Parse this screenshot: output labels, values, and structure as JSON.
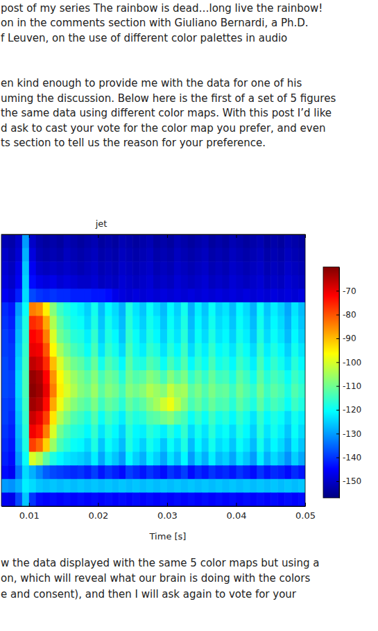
{
  "page": {
    "text_top": [
      "post of my series The rainbow is dead…long live the rainbow!",
      "on in the comments section with Giuliano Bernardi, a Ph.D.",
      "f Leuven, on the use of different color palettes in audio",
      "en kind enough to provide me with the data for one of his",
      "uming the discussion. Below here is the first of a set of 5 figures",
      "the same data using different color maps. With this post I’d like",
      "d ask to cast your vote for the color map you prefer, and even",
      "ts section to tell us the reason for your preference."
    ],
    "text_bottom": [
      "w the data displayed with the same 5 color maps but using a",
      "on, which will reveal what our brain is doing with the colors",
      "e and consent), and then I will ask again to vote for your"
    ]
  },
  "chart_data": {
    "type": "heatmap",
    "title": "jet",
    "x_label": "Time [s]",
    "xlim": [
      0.006,
      0.05
    ],
    "xticks": [
      0.01,
      0.02,
      0.03,
      0.04,
      0.05
    ],
    "ylim": [
      0,
      20
    ],
    "tick_labels": "x",
    "x": [
      0.006,
      0.007,
      0.008,
      0.009,
      0.01,
      0.011,
      0.012,
      0.013,
      0.014,
      0.015,
      0.016,
      0.017,
      0.018,
      0.019,
      0.02,
      0.021,
      0.022,
      0.023,
      0.024,
      0.025,
      0.026,
      0.027,
      0.028,
      0.029,
      0.03,
      0.031,
      0.032,
      0.033,
      0.034,
      0.035,
      0.036,
      0.037,
      0.038,
      0.039,
      0.04,
      0.041,
      0.042,
      0.043,
      0.044,
      0.045,
      0.046,
      0.047,
      0.048,
      0.049
    ],
    "y": [
      19,
      18,
      17,
      16,
      15,
      14,
      13,
      12,
      11,
      10,
      9,
      8,
      7,
      6,
      5,
      4,
      3,
      2,
      1,
      0
    ],
    "cells": [
      [
        -152,
        -153,
        -150,
        -130,
        -150,
        -153,
        -154,
        -153,
        -154,
        -152,
        -153,
        -154,
        -153,
        -152,
        -154,
        -153,
        -154,
        -152,
        -153,
        -154,
        -153,
        -152,
        -154,
        -153,
        -154,
        -152,
        -153,
        -154,
        -153,
        -152,
        -154,
        -153,
        -154,
        -152,
        -153,
        -154,
        -153,
        -152,
        -154,
        -153,
        -154,
        -152,
        -153,
        -154
      ],
      [
        -150,
        -152,
        -149,
        -128,
        -148,
        -152,
        -153,
        -152,
        -153,
        -151,
        -152,
        -153,
        -152,
        -151,
        -153,
        -152,
        -153,
        -151,
        -152,
        -153,
        -152,
        -151,
        -153,
        -152,
        -153,
        -151,
        -152,
        -153,
        -152,
        -151,
        -153,
        -152,
        -153,
        -151,
        -152,
        -153,
        -152,
        -151,
        -153,
        -152,
        -153,
        -151,
        -152,
        -153
      ],
      [
        -149,
        -151,
        -147,
        -126,
        -146,
        -150,
        -151,
        -150,
        -151,
        -150,
        -151,
        -152,
        -151,
        -150,
        -152,
        -151,
        -152,
        -150,
        -151,
        -152,
        -151,
        -150,
        -152,
        -151,
        -152,
        -150,
        -151,
        -152,
        -151,
        -150,
        -152,
        -151,
        -152,
        -150,
        -151,
        -152,
        -151,
        -150,
        -152,
        -151,
        -152,
        -150,
        -151,
        -152
      ],
      [
        -148,
        -150,
        -146,
        -125,
        -144,
        -147,
        -148,
        -147,
        -149,
        -148,
        -149,
        -150,
        -150,
        -149,
        -151,
        -150,
        -151,
        -149,
        -150,
        -151,
        -150,
        -149,
        -151,
        -150,
        -151,
        -149,
        -150,
        -151,
        -150,
        -149,
        -151,
        -150,
        -151,
        -149,
        -150,
        -151,
        -150,
        -149,
        -151,
        -150,
        -151,
        -149,
        -150,
        -151
      ],
      [
        -146,
        -148,
        -142,
        -124,
        -138,
        -140,
        -141,
        -140,
        -141,
        -141,
        -142,
        -142,
        -142,
        -143,
        -143,
        -144,
        -147,
        -148,
        -149,
        -148,
        -149,
        -148,
        -149,
        -148,
        -149,
        -148,
        -149,
        -148,
        -149,
        -148,
        -149,
        -148,
        -149,
        -148,
        -149,
        -148,
        -149,
        -148,
        -149,
        -148,
        -149,
        -148,
        -149,
        -148
      ],
      [
        -141,
        -143,
        -130,
        -120,
        -84,
        -86,
        -95,
        -108,
        -115,
        -118,
        -120,
        -122,
        -125,
        -119,
        -127,
        -121,
        -124,
        -128,
        -118,
        -123,
        -126,
        -120,
        -124,
        -127,
        -121,
        -125,
        -119,
        -128,
        -122,
        -126,
        -120,
        -125,
        -123,
        -127,
        -121,
        -124,
        -128,
        -120,
        -126,
        -122,
        -125,
        -129,
        -123,
        -127
      ],
      [
        -140,
        -142,
        -128,
        -118,
        -76,
        -78,
        -88,
        -104,
        -112,
        -116,
        -119,
        -120,
        -124,
        -118,
        -126,
        -119,
        -123,
        -127,
        -117,
        -122,
        -125,
        -119,
        -122,
        -126,
        -120,
        -124,
        -118,
        -127,
        -121,
        -125,
        -119,
        -124,
        -122,
        -126,
        -120,
        -123,
        -127,
        -119,
        -125,
        -121,
        -124,
        -128,
        -122,
        -126
      ],
      [
        -139,
        -141,
        -127,
        -117,
        -72,
        -74,
        -84,
        -100,
        -110,
        -113,
        -117,
        -118,
        -122,
        -116,
        -125,
        -118,
        -121,
        -126,
        -116,
        -120,
        -124,
        -118,
        -121,
        -125,
        -119,
        -123,
        -117,
        -126,
        -120,
        -124,
        -118,
        -123,
        -121,
        -125,
        -119,
        -122,
        -126,
        -118,
        -124,
        -120,
        -123,
        -127,
        -121,
        -125
      ],
      [
        -139,
        -140,
        -126,
        -116,
        -70,
        -71,
        -80,
        -96,
        -105,
        -110,
        -114,
        -116,
        -120,
        -114,
        -123,
        -116,
        -119,
        -124,
        -114,
        -119,
        -122,
        -116,
        -118,
        -123,
        -117,
        -121,
        -115,
        -124,
        -118,
        -122,
        -116,
        -121,
        -119,
        -123,
        -117,
        -120,
        -124,
        -116,
        -122,
        -118,
        -121,
        -125,
        -119,
        -123
      ],
      [
        -138,
        -140,
        -125,
        -115,
        -66,
        -68,
        -76,
        -90,
        -100,
        -106,
        -110,
        -112,
        -116,
        -111,
        -119,
        -113,
        -116,
        -121,
        -112,
        -117,
        -118,
        -113,
        -115,
        -120,
        -114,
        -118,
        -113,
        -121,
        -116,
        -120,
        -114,
        -119,
        -117,
        -121,
        -115,
        -118,
        -122,
        -114,
        -120,
        -116,
        -119,
        -123,
        -117,
        -121
      ],
      [
        -138,
        -139,
        -124,
        -114,
        -62,
        -64,
        -72,
        -86,
        -96,
        -102,
        -106,
        -109,
        -112,
        -108,
        -114,
        -110,
        -112,
        -117,
        -110,
        -113,
        -112,
        -108,
        -110,
        -114,
        -108,
        -112,
        -109,
        -116,
        -112,
        -116,
        -111,
        -115,
        -114,
        -118,
        -112,
        -115,
        -119,
        -112,
        -117,
        -114,
        -116,
        -120,
        -115,
        -118
      ],
      [
        -138,
        -139,
        -124,
        -114,
        -61,
        -63,
        -70,
        -84,
        -95,
        -100,
        -104,
        -108,
        -110,
        -106,
        -112,
        -108,
        -110,
        -114,
        -108,
        -110,
        -108,
        -104,
        -106,
        -108,
        -102,
        -106,
        -105,
        -112,
        -109,
        -113,
        -109,
        -112,
        -111,
        -115,
        -110,
        -113,
        -116,
        -110,
        -115,
        -112,
        -114,
        -118,
        -113,
        -116
      ],
      [
        -139,
        -140,
        -125,
        -115,
        -63,
        -65,
        -73,
        -88,
        -98,
        -104,
        -108,
        -111,
        -113,
        -109,
        -115,
        -111,
        -113,
        -117,
        -111,
        -114,
        -112,
        -108,
        -105,
        -101,
        -98,
        -103,
        -108,
        -114,
        -111,
        -115,
        -111,
        -114,
        -113,
        -117,
        -112,
        -115,
        -118,
        -112,
        -117,
        -114,
        -116,
        -120,
        -115,
        -118
      ],
      [
        -139,
        -141,
        -126,
        -116,
        -67,
        -70,
        -78,
        -94,
        -104,
        -109,
        -113,
        -115,
        -118,
        -113,
        -120,
        -115,
        -118,
        -122,
        -115,
        -118,
        -117,
        -113,
        -112,
        -110,
        -108,
        -112,
        -114,
        -120,
        -116,
        -120,
        -115,
        -119,
        -117,
        -121,
        -116,
        -119,
        -123,
        -116,
        -121,
        -118,
        -120,
        -124,
        -119,
        -122
      ],
      [
        -140,
        -142,
        -127,
        -117,
        -71,
        -74,
        -84,
        -100,
        -110,
        -114,
        -117,
        -118,
        -121,
        -116,
        -123,
        -118,
        -121,
        -125,
        -117,
        -121,
        -122,
        -117,
        -119,
        -122,
        -117,
        -121,
        -116,
        -124,
        -119,
        -123,
        -117,
        -122,
        -120,
        -124,
        -118,
        -121,
        -125,
        -117,
        -123,
        -119,
        -122,
        -126,
        -120,
        -124
      ],
      [
        -141,
        -143,
        -128,
        -118,
        -78,
        -82,
        -92,
        -106,
        -114,
        -117,
        -120,
        -121,
        -124,
        -118,
        -126,
        -120,
        -123,
        -127,
        -118,
        -122,
        -125,
        -119,
        -122,
        -126,
        -120,
        -124,
        -118,
        -127,
        -121,
        -125,
        -119,
        -124,
        -122,
        -126,
        -120,
        -123,
        -127,
        -119,
        -125,
        -121,
        -124,
        -128,
        -122,
        -126
      ],
      [
        -142,
        -144,
        -130,
        -120,
        -100,
        -104,
        -112,
        -118,
        -121,
        -123,
        -124,
        -125,
        -127,
        -122,
        -129,
        -123,
        -126,
        -130,
        -121,
        -125,
        -128,
        -122,
        -125,
        -129,
        -123,
        -127,
        -121,
        -130,
        -124,
        -128,
        -122,
        -127,
        -125,
        -129,
        -123,
        -126,
        -130,
        -122,
        -128,
        -124,
        -127,
        -131,
        -125,
        -129
      ],
      [
        -144,
        -146,
        -134,
        -124,
        -128,
        -132,
        -136,
        -138,
        -139,
        -140,
        -141,
        -140,
        -142,
        -139,
        -143,
        -140,
        -142,
        -144,
        -139,
        -141,
        -143,
        -140,
        -142,
        -144,
        -140,
        -142,
        -139,
        -144,
        -141,
        -143,
        -140,
        -142,
        -141,
        -143,
        -140,
        -142,
        -144,
        -140,
        -143,
        -141,
        -142,
        -144,
        -141,
        -143
      ],
      [
        -130,
        -131,
        -128,
        -122,
        -124,
        -126,
        -127,
        -126,
        -127,
        -126,
        -127,
        -126,
        -127,
        -126,
        -127,
        -126,
        -127,
        -126,
        -127,
        -126,
        -127,
        -126,
        -127,
        -126,
        -127,
        -126,
        -127,
        -126,
        -127,
        -126,
        -127,
        -126,
        -127,
        -126,
        -127,
        -126,
        -127,
        -126,
        -127,
        -126,
        -127,
        -126,
        -127,
        -126
      ],
      [
        -146,
        -147,
        -138,
        -126,
        -140,
        -144,
        -145,
        -144,
        -145,
        -144,
        -145,
        -144,
        -145,
        -144,
        -145,
        -144,
        -145,
        -144,
        -145,
        -144,
        -145,
        -144,
        -145,
        -144,
        -145,
        -144,
        -145,
        -144,
        -145,
        -144,
        -145,
        -144,
        -145,
        -144,
        -145,
        -144,
        -145,
        -144,
        -145,
        -144,
        -145,
        -144,
        -145,
        -144
      ]
    ],
    "colorbar": {
      "range": [
        -157,
        -60
      ],
      "ticks": [
        -70,
        -80,
        -90,
        -100,
        -110,
        -120,
        -130,
        -140,
        -150
      ]
    }
  }
}
